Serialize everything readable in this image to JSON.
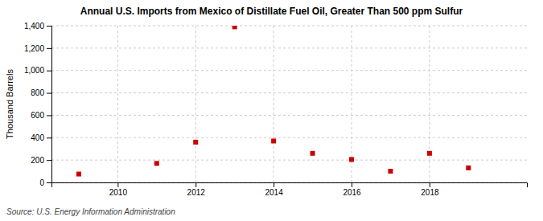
{
  "chart_data": {
    "type": "scatter",
    "title": "Annual U.S. Imports from Mexico of Distillate Fuel Oil, Greater Than 500 ppm Sulfur",
    "y_label": "Thousand Barrels",
    "source": "Source: U.S. Energy Information Administration",
    "x": [
      2009,
      2011,
      2012,
      2013,
      2014,
      2015,
      2016,
      2017,
      2018,
      2019
    ],
    "values": [
      75,
      170,
      360,
      1390,
      370,
      260,
      205,
      100,
      260,
      130
    ],
    "color": "#cc0000",
    "marker": "square",
    "xlim": [
      2008.3,
      2020.5
    ],
    "xticks": [
      2010,
      2012,
      2014,
      2016,
      2018
    ],
    "ylim": [
      0,
      1400
    ],
    "yticks": [
      0,
      200,
      400,
      600,
      800,
      {
        "value": 1000,
        "label": "1,000"
      },
      {
        "value": 1200,
        "label": "1,200"
      },
      {
        "value": 1400,
        "label": "1,400"
      }
    ],
    "grid": true
  }
}
